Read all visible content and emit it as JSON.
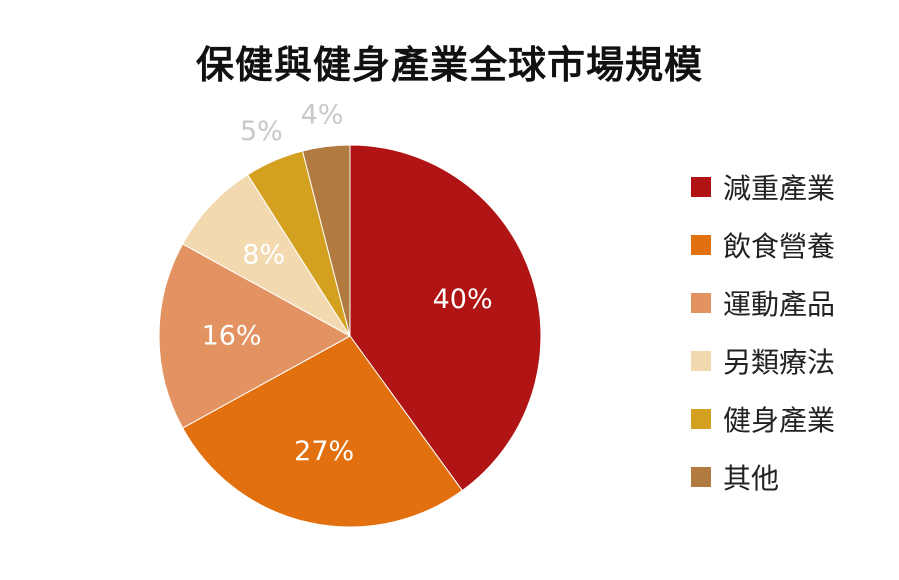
{
  "chart_data": {
    "type": "pie",
    "title": "保健與健身產業全球市場規模",
    "categories": [
      "減重產業",
      "飲食營養",
      "運動產品",
      "另類療法",
      "健身產業",
      "其他"
    ],
    "values": [
      40,
      27,
      16,
      8,
      5,
      4
    ],
    "value_labels": [
      "40%",
      "27%",
      "16%",
      "8%",
      "5%",
      "4%"
    ],
    "colors": [
      "#B01414",
      "#E3700E",
      "#E39362",
      "#F3D9B0",
      "#D4A020",
      "#B07A40"
    ],
    "label_colors": [
      "#ffffff",
      "#ffffff",
      "#ffffff",
      "#ffffff",
      "#C8C8C8",
      "#C8C8C8"
    ],
    "start_angle_deg": 0,
    "direction": "clockwise",
    "legend_position": "right"
  }
}
